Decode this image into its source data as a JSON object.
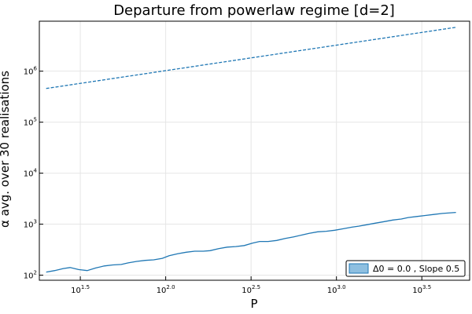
{
  "chart_data": {
    "type": "line",
    "title": "Departure from powerlaw regime [d=2]",
    "xlabel": "P",
    "ylabel": "α avg. over 30 realisations",
    "xscale": "log10",
    "yscale": "log10",
    "xlim": [
      1.26,
      3.78
    ],
    "ylim": [
      1.9,
      6.98
    ],
    "grid": true,
    "legend": {
      "position": "bottom-right",
      "entries": [
        "Δ0 = 0.0 , Slope 0.5"
      ]
    },
    "x_ticks": [
      {
        "label": "10",
        "exp": "1.5",
        "value": 1.5
      },
      {
        "label": "10",
        "exp": "2.0",
        "value": 2.0
      },
      {
        "label": "10",
        "exp": "2.5",
        "value": 2.5
      },
      {
        "label": "10",
        "exp": "3.0",
        "value": 3.0
      },
      {
        "label": "10",
        "exp": "3.5",
        "value": 3.5
      }
    ],
    "y_ticks": [
      {
        "label": "10",
        "exp": "2",
        "value": 2
      },
      {
        "label": "10",
        "exp": "3",
        "value": 3
      },
      {
        "label": "10",
        "exp": "4",
        "value": 4
      },
      {
        "label": "10",
        "exp": "5",
        "value": 5
      },
      {
        "label": "10",
        "exp": "6",
        "value": 6
      }
    ],
    "series": [
      {
        "name": "Δ0 = 0.0 , Slope 0.5",
        "color": "#1f77b4",
        "style": "solid",
        "x": [
          1.3,
          1.35,
          1.4,
          1.44,
          1.49,
          1.54,
          1.59,
          1.64,
          1.69,
          1.74,
          1.78,
          1.83,
          1.88,
          1.93,
          1.98,
          2.02,
          2.07,
          2.12,
          2.17,
          2.22,
          2.26,
          2.31,
          2.36,
          2.41,
          2.46,
          2.51,
          2.55,
          2.6,
          2.65,
          2.7,
          2.75,
          2.8,
          2.84,
          2.89,
          2.94,
          2.99,
          3.04,
          3.09,
          3.13,
          3.18,
          3.23,
          3.28,
          3.33,
          3.38,
          3.42,
          3.47,
          3.52,
          3.57,
          3.62,
          3.7
        ],
        "y": [
          2.06,
          2.09,
          2.13,
          2.15,
          2.11,
          2.09,
          2.14,
          2.18,
          2.2,
          2.21,
          2.24,
          2.27,
          2.29,
          2.3,
          2.33,
          2.38,
          2.42,
          2.45,
          2.47,
          2.47,
          2.48,
          2.52,
          2.55,
          2.56,
          2.58,
          2.63,
          2.66,
          2.66,
          2.68,
          2.72,
          2.75,
          2.79,
          2.82,
          2.85,
          2.86,
          2.88,
          2.91,
          2.94,
          2.96,
          2.99,
          3.02,
          3.05,
          3.08,
          3.1,
          3.13,
          3.15,
          3.17,
          3.19,
          3.21,
          3.23
        ]
      },
      {
        "name": "",
        "color": "#1f77b4",
        "style": "dashed",
        "x": [
          1.3,
          3.7
        ],
        "y": [
          5.66,
          6.86
        ]
      }
    ]
  }
}
